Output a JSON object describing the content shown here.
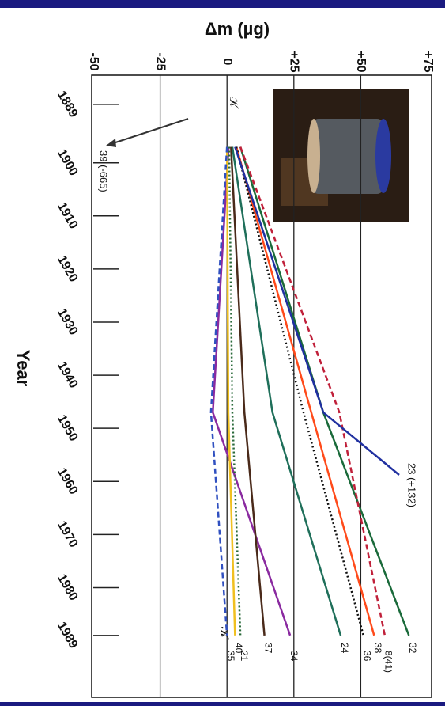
{
  "chart_data": {
    "type": "line",
    "title": "Δm (µg)",
    "x_label": "Year",
    "orientation": "rotated",
    "x": [
      1897,
      1947,
      1989
    ],
    "xlim": [
      1883.5,
      2000.5
    ],
    "xticks": [
      1889,
      1900,
      1910,
      1920,
      1930,
      1940,
      1950,
      1960,
      1970,
      1980,
      1989
    ],
    "ylim": [
      -50,
      75
    ],
    "yticks": [
      {
        "value": -50,
        "label": "-50"
      },
      {
        "value": -25,
        "label": "-25"
      },
      0,
      {
        "value": 25,
        "label": "+25"
      },
      {
        "value": 50,
        "label": "+50"
      },
      {
        "value": 75,
        "label": "+75"
      }
    ],
    "grid": true,
    "series": [
      {
        "name": "32",
        "color": "#1a6a3a",
        "style": "solid",
        "values": [
          5,
          36,
          68
        ]
      },
      {
        "name": "8(41)",
        "color": "#c0203a",
        "style": "dashed",
        "values": [
          5,
          42,
          59
        ]
      },
      {
        "name": "38",
        "color": "#ff4a1a",
        "style": "solid",
        "values": [
          3.5,
          31.5,
          55
        ]
      },
      {
        "name": "36",
        "color": "#111111",
        "style": "dotted",
        "values": [
          3.5,
          28.6,
          51
        ]
      },
      {
        "name": "24",
        "color": "#1f6f5a",
        "style": "solid",
        "values": [
          2,
          17,
          42.5
        ]
      },
      {
        "name": "34",
        "color": "#8a2aa0",
        "style": "solid",
        "values": [
          0.6,
          -5.3,
          23.6
        ]
      },
      {
        "name": "37",
        "color": "#4a2a1a",
        "style": "solid",
        "values": [
          1.5,
          6.5,
          14
        ]
      },
      {
        "name": "21",
        "color": "#2a6a3a",
        "style": "dotted",
        "values": [
          0.8,
          2,
          5
        ]
      },
      {
        "name": "40",
        "color": "#f0c020",
        "style": "solid",
        "values": [
          0,
          0.5,
          3
        ]
      },
      {
        "name": "35",
        "color": "#3050c0",
        "style": "dashed",
        "values": [
          0,
          -6,
          0
        ]
      },
      {
        "name": "23 (+132)",
        "color": "#2030a0",
        "style": "solid",
        "values": [
          3,
          36,
          null
        ]
      }
    ],
    "annotations": [
      "39 (-665)",
      "𝒦",
      "𝒦"
    ]
  }
}
